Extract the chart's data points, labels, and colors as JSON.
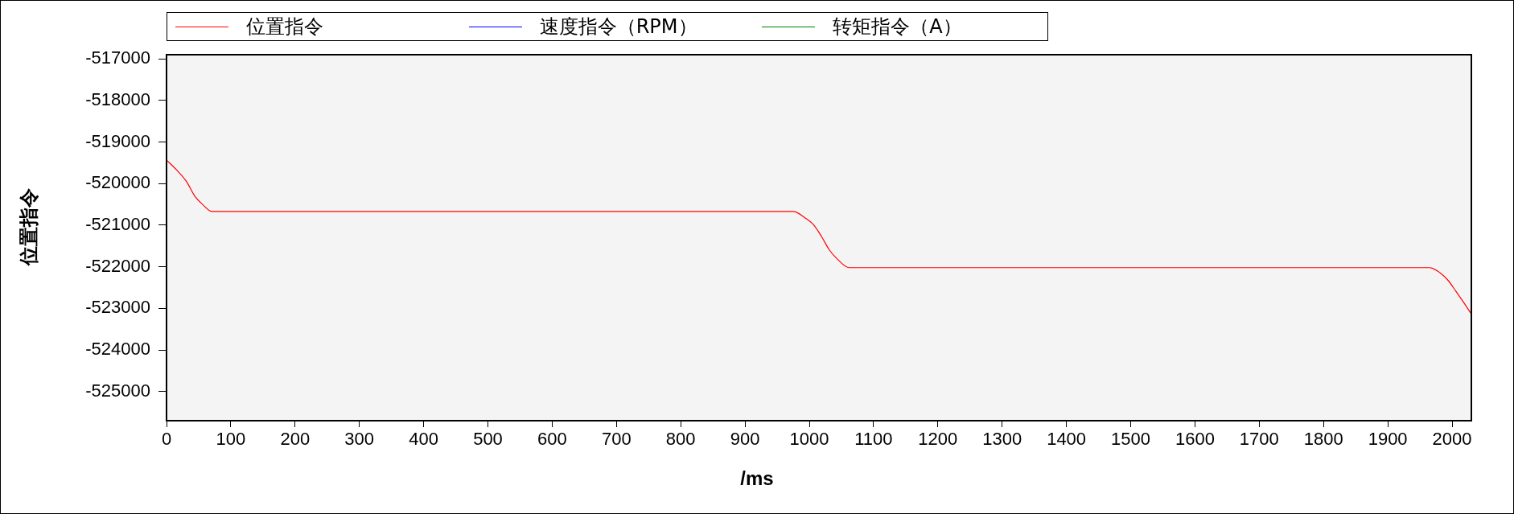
{
  "chart_data": {
    "type": "line",
    "xlabel": "/ms",
    "ylabel": "位置指令",
    "xlim": [
      0,
      2030
    ],
    "xticks": [
      0,
      100,
      200,
      300,
      400,
      500,
      600,
      700,
      800,
      900,
      1000,
      1100,
      1200,
      1300,
      1400,
      1500,
      1600,
      1700,
      1800,
      1900,
      2000
    ],
    "ylim": [
      -525700,
      -516900
    ],
    "yticks": [
      -525000,
      -524000,
      -523000,
      -522000,
      -521000,
      -520000,
      -519000,
      -518000,
      -517000
    ],
    "grid": false,
    "legend": "top",
    "marker": "none",
    "line_style": "solid",
    "series": [
      {
        "name": "位置指令",
        "color": "#ff0000",
        "x": [
          0,
          15,
          31,
          44,
          56,
          71,
          975,
          994,
          1006,
          1019,
          1031,
          1044,
          1062,
          1965,
          1981,
          1994,
          2006,
          2019,
          2029
        ],
        "values": [
          -519430,
          -519660,
          -519950,
          -520300,
          -520500,
          -520670,
          -520670,
          -520830,
          -520980,
          -521270,
          -521590,
          -521820,
          -522020,
          -522020,
          -522140,
          -522330,
          -522590,
          -522880,
          -523110
        ]
      },
      {
        "name": "速度指令（RPM）",
        "color": "#0000ff"
      },
      {
        "name": "转矩指令（A）",
        "color": "#008000"
      }
    ]
  }
}
